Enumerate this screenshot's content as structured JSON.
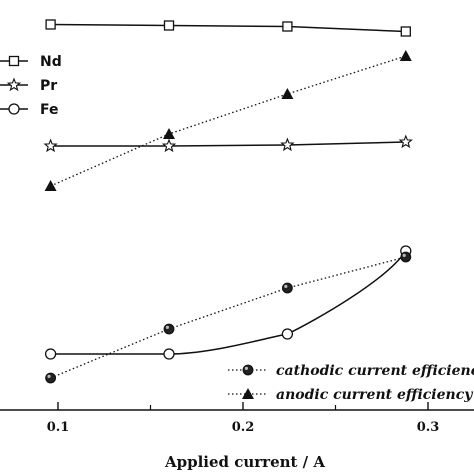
{
  "chart_data": {
    "type": "line",
    "xlabel": "Applied current / A",
    "xlim": [
      0.08,
      0.33
    ],
    "xticks": [
      0.1,
      0.2,
      0.3
    ],
    "xtick_labels": [
      "0.1",
      "0.2",
      "0.3"
    ],
    "grid": false,
    "series": [
      {
        "name": "Nd",
        "marker": "square-open",
        "line": "solid",
        "smooth": false,
        "x": [
          0.096,
          0.16,
          0.224,
          0.288
        ],
        "y": [
          24.5,
          25.5,
          26.5,
          31.5
        ]
      },
      {
        "name": "Pr",
        "marker": "star-open",
        "line": "solid",
        "smooth": false,
        "x": [
          0.096,
          0.16,
          0.224,
          0.288
        ],
        "y": [
          146,
          146,
          145,
          142
        ]
      },
      {
        "name": "Fe",
        "marker": "circle-open",
        "line": "solid",
        "smooth": true,
        "x": [
          0.096,
          0.16,
          0.224,
          0.288
        ],
        "y": [
          354,
          354,
          334,
          251
        ]
      },
      {
        "name": "cathodic current efficiency",
        "marker": "circle-half-filled",
        "line": "dotted",
        "smooth": false,
        "x": [
          0.096,
          0.16,
          0.224,
          0.288
        ],
        "y": [
          378,
          329,
          288,
          257
        ]
      },
      {
        "name": "anodic current efficiency",
        "marker": "triangle-filled",
        "line": "dotted",
        "smooth": false,
        "x": [
          0.096,
          0.16,
          0.224,
          0.288
        ],
        "y": [
          186,
          134,
          94,
          56
        ]
      }
    ],
    "legend_top_left": [
      "Nd",
      "Pr",
      "Fe"
    ],
    "legend_bottom_right": [
      "cathodic current efficiency",
      "anodic current efficiency"
    ],
    "colors": {
      "line": "#111111",
      "background": "#ffffff"
    }
  }
}
